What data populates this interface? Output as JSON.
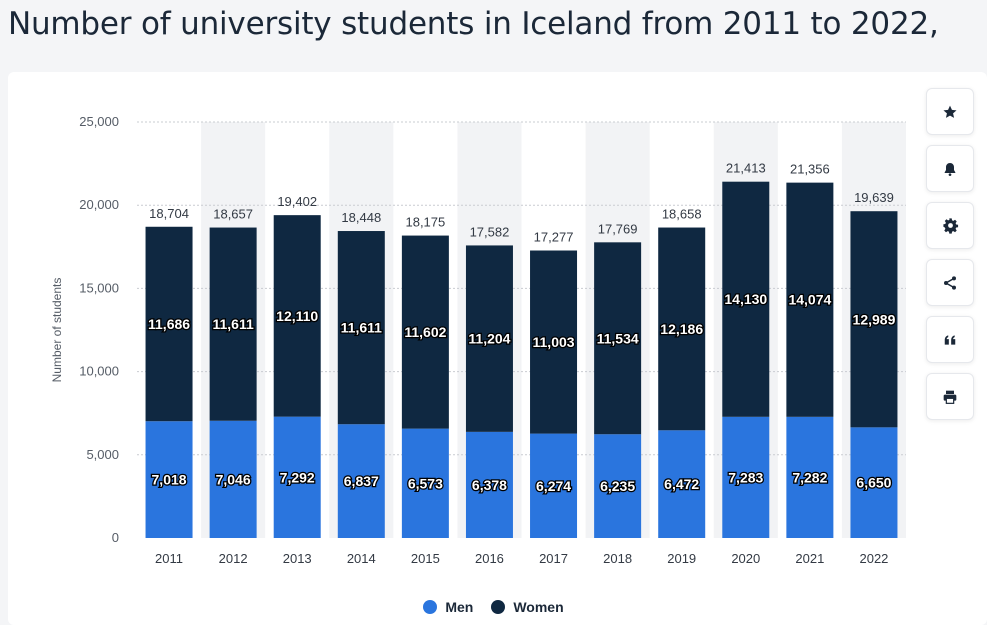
{
  "page_title": "Number of university students in Iceland from 2011 to 2022,",
  "toolbar": {
    "icons": [
      "star-icon",
      "bell-icon",
      "gear-icon",
      "share-icon",
      "quote-icon",
      "print-icon"
    ]
  },
  "colors": {
    "men": "#2a75de",
    "women": "#0f2841",
    "stripe": "#f2f3f5",
    "grid": "#c9ccd1",
    "axis_text": "#555c66"
  },
  "chart_data": {
    "type": "bar",
    "stacked": true,
    "title": "",
    "xlabel": "",
    "ylabel": "Number of students",
    "ylim": [
      0,
      25000
    ],
    "yticks": [
      0,
      5000,
      10000,
      15000,
      20000,
      25000
    ],
    "ytick_labels": [
      "0",
      "5,000",
      "10,000",
      "15,000",
      "20,000",
      "25,000"
    ],
    "categories": [
      "2011",
      "2012",
      "2013",
      "2014",
      "2015",
      "2016",
      "2017",
      "2018",
      "2019",
      "2020",
      "2021",
      "2022"
    ],
    "series": [
      {
        "name": "Men",
        "values": [
          7018,
          7046,
          7292,
          6837,
          6573,
          6378,
          6274,
          6235,
          6472,
          7283,
          7282,
          6650
        ],
        "labels": [
          "7,018",
          "7,046",
          "7,292",
          "6,837",
          "6,573",
          "6,378",
          "6,274",
          "6,235",
          "6,472",
          "7,283",
          "7,282",
          "6,650"
        ]
      },
      {
        "name": "Women",
        "values": [
          11686,
          11611,
          12110,
          11611,
          11602,
          11204,
          11003,
          11534,
          12186,
          14130,
          14074,
          12989
        ],
        "labels": [
          "11,686",
          "11,611",
          "12,110",
          "11,611",
          "11,602",
          "11,204",
          "11,003",
          "11,534",
          "12,186",
          "14,130",
          "14,074",
          "12,989"
        ]
      }
    ],
    "totals": [
      18704,
      18657,
      19402,
      18448,
      18175,
      17582,
      17277,
      17769,
      18658,
      21413,
      21356,
      19639
    ],
    "total_labels": [
      "18,704",
      "18,657",
      "19,402",
      "18,448",
      "18,175",
      "17,582",
      "17,277",
      "17,769",
      "18,658",
      "21,413",
      "21,356",
      "19,639"
    ],
    "grid": true,
    "legend_position": "bottom-center"
  }
}
